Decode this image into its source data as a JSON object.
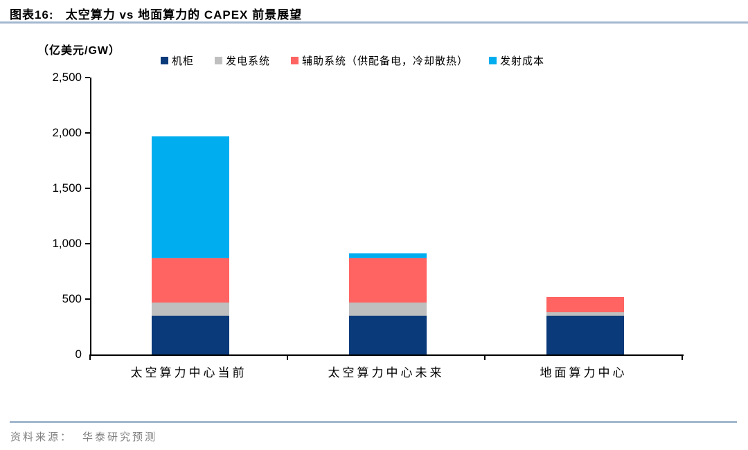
{
  "header": {
    "title": "图表16:   太空算力 vs 地面算力的 CAPEX 前景展望"
  },
  "chart_data": {
    "type": "bar",
    "stacked": true,
    "title": "太空算力 vs 地面算力的 CAPEX 前景展望",
    "unit_label": "（亿美元/GW）",
    "categories": [
      "太空算力中心当前",
      "太空算力中心未来",
      "地面算力中心"
    ],
    "series": [
      {
        "name": "机柜",
        "color": "#0a3a7a",
        "values": [
          350,
          350,
          350
        ]
      },
      {
        "name": "发电系统",
        "color": "#bfbfbf",
        "values": [
          120,
          120,
          30
        ]
      },
      {
        "name": "辅助系统（供配备电，冷却散热）",
        "color": "#ff6462",
        "values": [
          400,
          400,
          140
        ]
      },
      {
        "name": "发射成本",
        "color": "#00adee",
        "values": [
          1100,
          40,
          0
        ]
      }
    ],
    "ylim": [
      0,
      2500
    ],
    "ytick_step": 500,
    "ytick_labels": [
      "0",
      "500",
      "1,000",
      "1,500",
      "2,000",
      "2,500"
    ],
    "legend_position": "top",
    "grid": false
  },
  "footer": {
    "source_label": "资料来源：",
    "source_text": "华泰研究预测"
  },
  "colors": {
    "rule": "#a3b8ce",
    "axis": "#000000",
    "footer_text": "#7f7f7f"
  }
}
